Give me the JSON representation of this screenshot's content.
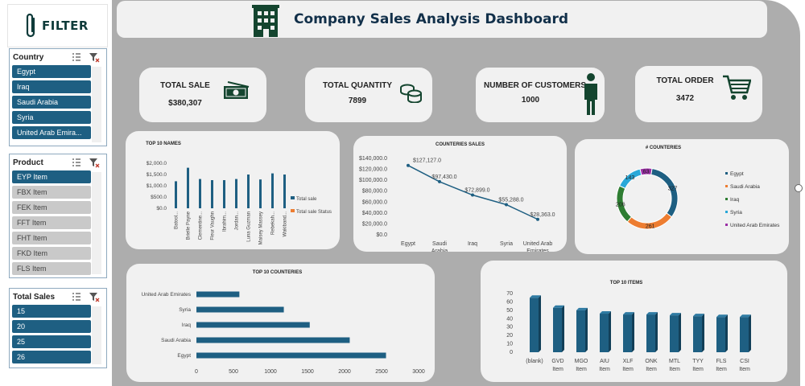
{
  "sidebar": {
    "filter_title": "FILTER",
    "slicers": [
      {
        "title": "Country",
        "items": [
          {
            "label": "Egypt",
            "selected": true
          },
          {
            "label": "Iraq",
            "selected": true
          },
          {
            "label": "Saudi Arabia",
            "selected": true
          },
          {
            "label": "Syria",
            "selected": true
          },
          {
            "label": "United Arab Emira...",
            "selected": true
          }
        ]
      },
      {
        "title": "Product",
        "items": [
          {
            "label": "EYP Item",
            "selected": true
          },
          {
            "label": "FBX Item",
            "selected": false
          },
          {
            "label": "FEK Item",
            "selected": false
          },
          {
            "label": "FFT Item",
            "selected": false
          },
          {
            "label": "FHT Item",
            "selected": false
          },
          {
            "label": "FKD Item",
            "selected": false
          },
          {
            "label": "FLS Item",
            "selected": false
          }
        ]
      },
      {
        "title": "Total Sales",
        "items": [
          {
            "label": "15",
            "selected": true
          },
          {
            "label": "20",
            "selected": true
          },
          {
            "label": "25",
            "selected": true
          },
          {
            "label": "26",
            "selected": true
          }
        ]
      }
    ]
  },
  "header": {
    "title": "Company Sales Analysis Dashboard"
  },
  "kpis": [
    {
      "label": "TOTAL SALE",
      "value": "$380,307",
      "icon": "money-icon"
    },
    {
      "label": "TOTAL  QUANTITY",
      "value": "7899",
      "icon": "coins-icon"
    },
    {
      "label": "NUMBER OF CUSTOMERS",
      "value": "1000",
      "icon": "person-icon"
    },
    {
      "label": "TOTAL ORDER",
      "value": "3472",
      "icon": "cart-icon"
    }
  ],
  "colors": {
    "primary": "#1e5f82",
    "orange": "#ed7d31",
    "green": "#2e7d32",
    "cyan": "#29a8d8",
    "purple": "#9b2fa5",
    "panel": "#adadad",
    "card": "#f1f1f1"
  },
  "chart_data": [
    {
      "id": "top10names",
      "type": "bar",
      "title": "TOP 10 NAMES",
      "categories": [
        "Batool...",
        "Brielle Payne",
        "Clementine...",
        "Fleur Vaughn",
        "Ibrahim...",
        "Jordan...",
        "Luna Guzman",
        "Maisey Massey",
        "Rebekah...",
        "Wakiband..."
      ],
      "series": [
        {
          "name": "Total sale",
          "values": [
            1200,
            1800,
            1300,
            1250,
            1250,
            1300,
            1500,
            1280,
            1550,
            1500
          ]
        },
        {
          "name": "Total sale Status",
          "values": [
            0,
            0,
            0,
            0,
            0,
            0,
            0,
            0,
            0,
            0
          ]
        }
      ],
      "yticks": [
        "$0.0",
        "$500.0",
        "$1,000.0",
        "$1,500.0",
        "$2,000.0"
      ],
      "ylim": [
        0,
        2000
      ],
      "legend": "right"
    },
    {
      "id": "counteries_sales",
      "type": "line",
      "title": "COUNTERIES SALES",
      "categories": [
        "Egypt",
        "Saudi Arabia",
        "Iraq",
        "Syria",
        "United Arab Emirates"
      ],
      "values": [
        127127,
        97430,
        72899,
        55288,
        28363
      ],
      "data_labels": [
        "$127,127.0",
        "$97,430.0",
        "$72,899.0",
        "$55,288.0",
        "$28,363.0"
      ],
      "yticks": [
        "$0.0",
        "$20,000.0",
        "$40,000.0",
        "$60,000.0",
        "$80,000.0",
        "$100,000.0",
        "$120,000.0",
        "$140,000.0"
      ],
      "ylim": [
        0,
        140000
      ]
    },
    {
      "id": "counteries_count",
      "type": "pie",
      "title": "# COUNTERIES",
      "categories": [
        "Egypt",
        "Saudi Arabia",
        "Iraq",
        "Syria",
        "United Arab Emirates"
      ],
      "values": [
        327,
        261,
        206,
        143,
        63
      ],
      "data_labels": [
        "327",
        "261",
        "206",
        "143",
        "63"
      ],
      "colors": [
        "#1e5f82",
        "#ed7d31",
        "#2e7d32",
        "#29a8d8",
        "#9b2fa5"
      ],
      "legend": "right"
    },
    {
      "id": "top10counteries",
      "type": "bar",
      "orientation": "horizontal",
      "title": "TOP 10 COUNTERIES",
      "categories": [
        "United Arab Emirates",
        "Syria",
        "Iraq",
        "Saudi Arabia",
        "Egypt"
      ],
      "values": [
        580,
        1180,
        1530,
        2070,
        2560
      ],
      "xticks": [
        "0",
        "500",
        "1000",
        "1500",
        "2000",
        "2500",
        "3000"
      ],
      "xlim": [
        0,
        3000
      ]
    },
    {
      "id": "top10items",
      "type": "bar",
      "title": "TOP 10 ITEMS",
      "categories": [
        "(blank)",
        "GVD Item",
        "MGO Item",
        "AIU Item",
        "XLF Item",
        "ONK Item",
        "MTL Item",
        "TYY Item",
        "FLS Item",
        "CSI Item"
      ],
      "values": [
        65,
        53,
        50,
        46,
        45,
        45,
        44,
        43,
        42,
        42
      ],
      "yticks": [
        "0",
        "10",
        "20",
        "30",
        "40",
        "50",
        "60",
        "70"
      ],
      "ylim": [
        0,
        70
      ]
    }
  ]
}
